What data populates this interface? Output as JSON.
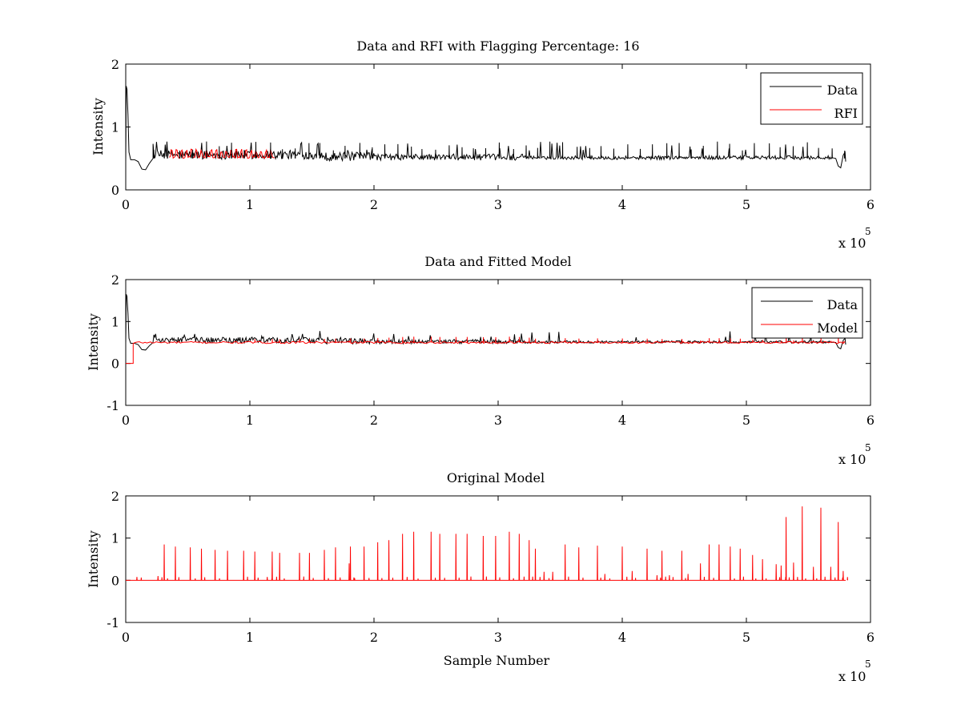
{
  "figure": {
    "background": "#ffffff",
    "colors": {
      "data": "#000000",
      "rfi": "#ff0000",
      "model": "#ff0000"
    }
  },
  "chart_data": [
    {
      "type": "line",
      "title": "Data and RFI with Flagging Percentage: 16",
      "xlabel": "",
      "ylabel": "Intensity",
      "xlim": [
        0,
        600000
      ],
      "ylim": [
        0,
        2
      ],
      "xticks": [
        0,
        1,
        2,
        3,
        4,
        5,
        6
      ],
      "yticks": [
        0,
        1,
        2
      ],
      "x_exponent_label": "x 10",
      "x_exponent": "5",
      "legend": {
        "placement": "top-right",
        "entries": [
          "Data",
          "RFI"
        ]
      },
      "series": [
        {
          "name": "Data",
          "color": "#000000",
          "description_points": [
            [
              0,
              0.45
            ],
            [
              500,
              1.65
            ],
            [
              1500,
              1.6
            ],
            [
              3000,
              0.5
            ],
            [
              15000,
              0.32
            ],
            [
              20000,
              0.45
            ],
            [
              30000,
              0.5
            ],
            [
              100000,
              0.55
            ],
            [
              150000,
              0.55
            ],
            [
              300000,
              0.5
            ],
            [
              570000,
              0.5
            ],
            [
              574000,
              0.35
            ],
            [
              580000,
              0.5
            ]
          ],
          "baseline": 0.5,
          "spike_heights": [
            0.7,
            0.75,
            0.8
          ]
        },
        {
          "name": "RFI",
          "color": "#ff0000",
          "x_range": [
            35000,
            120000
          ],
          "baseline": 0.5,
          "peak": 0.65
        }
      ]
    },
    {
      "type": "line",
      "title": "Data and Fitted Model",
      "xlabel": "",
      "ylabel": "Intensity",
      "xlim": [
        0,
        600000
      ],
      "ylim": [
        -1,
        2
      ],
      "xticks": [
        0,
        1,
        2,
        3,
        4,
        5,
        6
      ],
      "yticks": [
        -1,
        0,
        1,
        2
      ],
      "x_exponent_label": "x 10",
      "x_exponent": "5",
      "legend": {
        "placement": "top-right",
        "entries": [
          "Data",
          "Model"
        ]
      },
      "series": [
        {
          "name": "Data",
          "color": "#000000",
          "baseline": 0.5
        },
        {
          "name": "Model",
          "color": "#ff0000",
          "baseline": 0.5,
          "initial_value": 0.0,
          "step_x": 6000
        }
      ]
    },
    {
      "type": "line",
      "title": "Original Model",
      "xlabel": "Sample Number",
      "ylabel": "Intensity",
      "xlim": [
        0,
        600000
      ],
      "ylim": [
        -1,
        2
      ],
      "xticks": [
        0,
        1,
        2,
        3,
        4,
        5,
        6
      ],
      "yticks": [
        -1,
        0,
        1,
        2
      ],
      "x_exponent_label": "x 10",
      "x_exponent": "5",
      "series": [
        {
          "color": "#ff0000",
          "baseline": 0,
          "x_end": 580000,
          "spikes": [
            [
              9000,
              0.08
            ],
            [
              26000,
              0.1
            ],
            [
              31000,
              0.85
            ],
            [
              40000,
              0.8
            ],
            [
              52000,
              0.78
            ],
            [
              61000,
              0.75
            ],
            [
              72000,
              0.72
            ],
            [
              82000,
              0.7
            ],
            [
              95000,
              0.7
            ],
            [
              104000,
              0.68
            ],
            [
              114000,
              0.08
            ],
            [
              118000,
              0.68
            ],
            [
              124000,
              0.65
            ],
            [
              140000,
              0.65
            ],
            [
              148000,
              0.65
            ],
            [
              160000,
              0.72
            ],
            [
              169000,
              0.78
            ],
            [
              180000,
              0.4
            ],
            [
              181000,
              0.8
            ],
            [
              192000,
              0.8
            ],
            [
              203000,
              0.9
            ],
            [
              212000,
              0.95
            ],
            [
              223000,
              1.1
            ],
            [
              232000,
              1.15
            ],
            [
              246000,
              1.15
            ],
            [
              253000,
              1.1
            ],
            [
              266000,
              1.1
            ],
            [
              275000,
              1.1
            ],
            [
              288000,
              1.05
            ],
            [
              298000,
              1.05
            ],
            [
              309000,
              1.15
            ],
            [
              317000,
              1.1
            ],
            [
              325000,
              0.95
            ],
            [
              330000,
              0.75
            ],
            [
              337000,
              0.2
            ],
            [
              344000,
              0.2
            ],
            [
              354000,
              0.85
            ],
            [
              365000,
              0.78
            ],
            [
              380000,
              0.82
            ],
            [
              386000,
              0.15
            ],
            [
              400000,
              0.8
            ],
            [
              408000,
              0.22
            ],
            [
              420000,
              0.75
            ],
            [
              428000,
              0.12
            ],
            [
              432000,
              0.7
            ],
            [
              438000,
              0.12
            ],
            [
              448000,
              0.7
            ],
            [
              453000,
              0.15
            ],
            [
              463000,
              0.4
            ],
            [
              470000,
              0.85
            ],
            [
              478000,
              0.85
            ],
            [
              487000,
              0.8
            ],
            [
              495000,
              0.75
            ],
            [
              505000,
              0.6
            ],
            [
              513000,
              0.5
            ],
            [
              524000,
              0.38
            ],
            [
              528000,
              0.35
            ],
            [
              532000,
              1.5
            ],
            [
              538000,
              0.42
            ],
            [
              545000,
              1.75
            ],
            [
              554000,
              0.32
            ],
            [
              560000,
              1.72
            ],
            [
              568000,
              0.32
            ],
            [
              574000,
              1.38
            ],
            [
              578000,
              0.22
            ]
          ]
        }
      ]
    }
  ]
}
